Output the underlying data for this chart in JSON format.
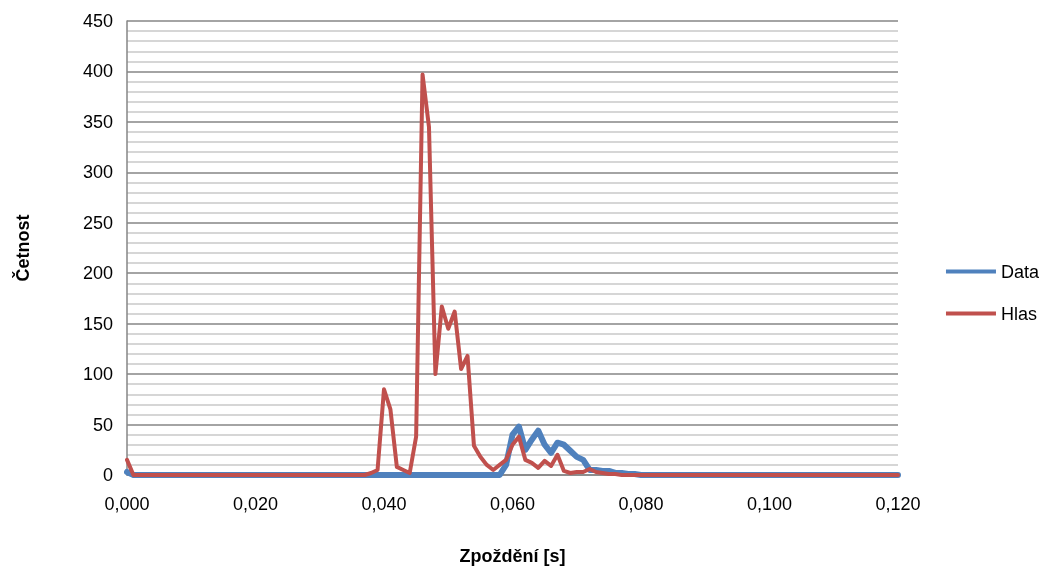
{
  "chart_data": {
    "type": "line",
    "xlabel": "Zpoždění [s]",
    "ylabel": "Četnost",
    "xlim": [
      0,
      0.12
    ],
    "xticks": [
      {
        "value": 0,
        "label": "0,000"
      },
      {
        "value": 0.02,
        "label": "0,020"
      },
      {
        "value": 0.04,
        "label": "0,040"
      },
      {
        "value": 0.06,
        "label": "0,060"
      },
      {
        "value": 0.08,
        "label": "0,080"
      },
      {
        "value": 0.1,
        "label": "0,100"
      },
      {
        "value": 0.12,
        "label": "0,120"
      }
    ],
    "ylim": [
      0,
      450
    ],
    "yticks": [
      0,
      {
        "value": 10,
        "label": null
      },
      {
        "value": 20,
        "label": null
      },
      {
        "value": 30,
        "label": null
      },
      {
        "value": 40,
        "label": null
      },
      50,
      {
        "value": 60,
        "label": null
      },
      {
        "value": 70,
        "label": null
      },
      {
        "value": 80,
        "label": null
      },
      {
        "value": 90,
        "label": null
      },
      100,
      {
        "value": 110,
        "label": null
      },
      {
        "value": 120,
        "label": null
      },
      {
        "value": 130,
        "label": null
      },
      {
        "value": 140,
        "label": null
      },
      150,
      {
        "value": 160,
        "label": null
      },
      {
        "value": 170,
        "label": null
      },
      {
        "value": 180,
        "label": null
      },
      {
        "value": 190,
        "label": null
      },
      200,
      {
        "value": 210,
        "label": null
      },
      {
        "value": 220,
        "label": null
      },
      {
        "value": 230,
        "label": null
      },
      {
        "value": 240,
        "label": null
      },
      250,
      {
        "value": 260,
        "label": null
      },
      {
        "value": 270,
        "label": null
      },
      {
        "value": 280,
        "label": null
      },
      {
        "value": 290,
        "label": null
      },
      300,
      {
        "value": 310,
        "label": null
      },
      {
        "value": 320,
        "label": null
      },
      {
        "value": 330,
        "label": null
      },
      {
        "value": 340,
        "label": null
      },
      350,
      {
        "value": 360,
        "label": null
      },
      {
        "value": 370,
        "label": null
      },
      {
        "value": 380,
        "label": null
      },
      {
        "value": 390,
        "label": null
      },
      400,
      {
        "value": 410,
        "label": null
      },
      {
        "value": 420,
        "label": null
      },
      {
        "value": 430,
        "label": null
      },
      {
        "value": 440,
        "label": null
      },
      450
    ],
    "grid": "y",
    "legend": "right",
    "marker": "none",
    "line_style": "solid",
    "series": [
      {
        "name": "Data",
        "color": "#4f81bd",
        "x": [
          0,
          0.001,
          0.057,
          0.058,
          0.059,
          0.06,
          0.061,
          0.062,
          0.063,
          0.064,
          0.065,
          0.066,
          0.067,
          0.068,
          0.069,
          0.07,
          0.071,
          0.072,
          0.073,
          0.074,
          0.075,
          0.076,
          0.077,
          0.078,
          0.079,
          0.08,
          0.12
        ],
        "values": [
          3,
          0,
          0,
          0,
          10,
          40,
          48,
          25,
          35,
          44,
          30,
          22,
          32,
          30,
          24,
          18,
          15,
          5,
          5,
          4,
          4,
          2,
          2,
          1,
          1,
          0,
          0
        ]
      },
      {
        "name": "Hlas",
        "color": "#c0504d",
        "x": [
          0,
          0.001,
          0.037,
          0.038,
          0.039,
          0.04,
          0.041,
          0.042,
          0.043,
          0.044,
          0.045,
          0.046,
          0.047,
          0.048,
          0.049,
          0.05,
          0.051,
          0.052,
          0.053,
          0.054,
          0.055,
          0.056,
          0.057,
          0.058,
          0.059,
          0.06,
          0.061,
          0.062,
          0.063,
          0.064,
          0.065,
          0.066,
          0.067,
          0.068,
          0.069,
          0.07,
          0.071,
          0.072,
          0.073,
          0.074,
          0.075,
          0.076,
          0.077,
          0.12
        ],
        "values": [
          15,
          0,
          0,
          2,
          5,
          85,
          65,
          8,
          5,
          2,
          38,
          397,
          345,
          100,
          167,
          145,
          162,
          105,
          118,
          29,
          18,
          10,
          5,
          10,
          15,
          30,
          38,
          15,
          12,
          7,
          14,
          9,
          20,
          4,
          2,
          3,
          3,
          6,
          3,
          2,
          1,
          1,
          0,
          0
        ]
      }
    ]
  }
}
